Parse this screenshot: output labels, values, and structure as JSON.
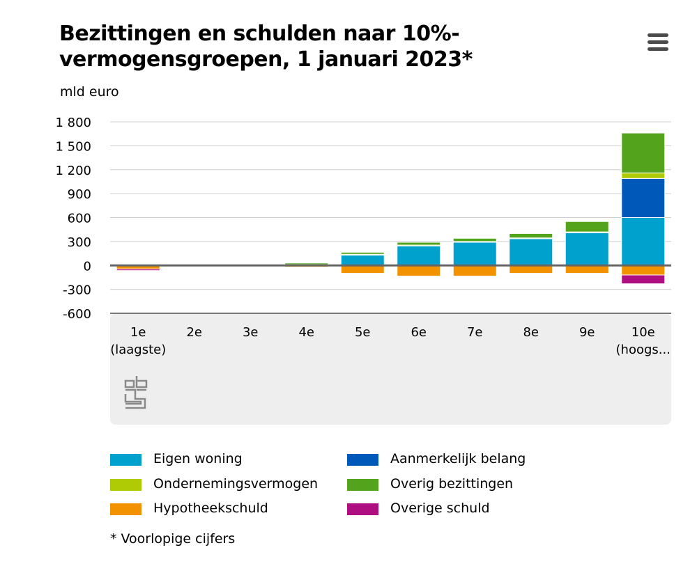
{
  "title": "Bezittingen en schulden naar 10%-vermogensgroepen, 1 januari 2023*",
  "menu_icon": "hamburger-menu-icon",
  "unit_label": "mld euro",
  "logo_icon": "cbs-logo-icon",
  "footnote": "* Voorlopige cijfers",
  "chart_data": {
    "type": "bar",
    "stacked": true,
    "title": "Bezittingen en schulden naar 10%-vermogensgroepen, 1 januari 2023*",
    "ylabel": "mld euro",
    "xlabel": "",
    "ylim": [
      -600,
      1800
    ],
    "yticks": [
      -600,
      -300,
      0,
      300,
      600,
      900,
      1200,
      1500,
      1800
    ],
    "ytick_labels": [
      "-600",
      "-300",
      "0",
      "300",
      "600",
      "900",
      "1 200",
      "1 500",
      "1 800"
    ],
    "grid": true,
    "categories": [
      [
        "1e",
        "(laagste)"
      ],
      [
        "2e"
      ],
      [
        "3e"
      ],
      [
        "4e"
      ],
      [
        "5e"
      ],
      [
        "6e"
      ],
      [
        "7e"
      ],
      [
        "8e"
      ],
      [
        "9e"
      ],
      [
        "10e",
        "(hoogs..."
      ]
    ],
    "series": [
      {
        "name": "Eigen woning",
        "color": "#00a1cd",
        "values": [
          0,
          0,
          0,
          5,
          130,
          245,
          290,
          335,
          410,
          600
        ]
      },
      {
        "name": "Aanmerkelijk belang",
        "color": "#0058b8",
        "values": [
          0,
          0,
          0,
          0,
          0,
          0,
          0,
          0,
          0,
          490
        ]
      },
      {
        "name": "Ondernemingsvermogen",
        "color": "#afcb05",
        "values": [
          0,
          0,
          0,
          5,
          10,
          10,
          10,
          10,
          10,
          70
        ]
      },
      {
        "name": "Overig bezittingen",
        "color": "#53a31d",
        "values": [
          5,
          0,
          0,
          20,
          25,
          35,
          40,
          55,
          130,
          500
        ]
      },
      {
        "name": "Hypotheekschuld",
        "color": "#f39200",
        "values": [
          -45,
          0,
          0,
          -20,
          -100,
          -135,
          -135,
          -100,
          -100,
          -120
        ]
      },
      {
        "name": "Overige schuld",
        "color": "#af0e80",
        "values": [
          -20,
          0,
          0,
          0,
          -5,
          -5,
          -5,
          -5,
          -5,
          -110
        ]
      }
    ]
  },
  "legend": [
    {
      "label": "Eigen woning",
      "color": "#00a1cd"
    },
    {
      "label": "Aanmerkelijk belang",
      "color": "#0058b8"
    },
    {
      "label": "Ondernemingsvermogen",
      "color": "#afcb05"
    },
    {
      "label": "Overig bezittingen",
      "color": "#53a31d"
    },
    {
      "label": "Hypotheekschuld",
      "color": "#f39200"
    },
    {
      "label": "Overige schuld",
      "color": "#af0e80"
    }
  ]
}
